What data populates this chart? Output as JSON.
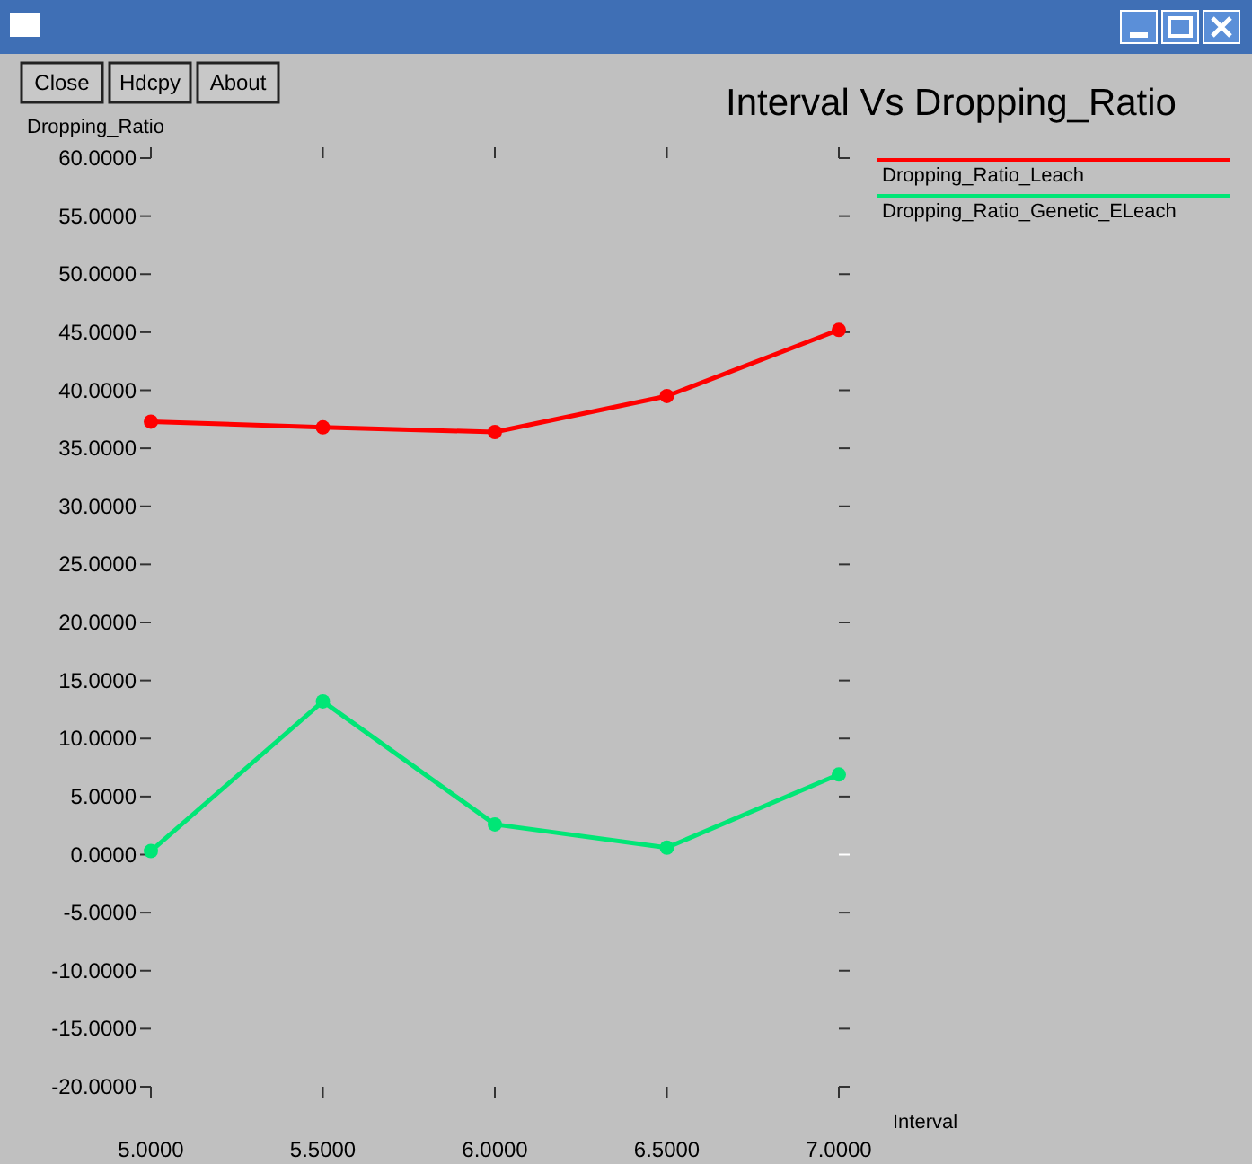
{
  "chart_data": {
    "type": "line",
    "title": "Interval Vs Dropping_Ratio",
    "xlabel": "Interval",
    "ylabel": "Dropping_Ratio",
    "annotations": [
      "Close",
      "Hdcpy",
      "About"
    ],
    "x": [
      5,
      5.5,
      6,
      6.5,
      7
    ],
    "series": [
      {
        "name": "Dropping_Ratio_Leach",
        "color": "#ff0000",
        "values": [
          37.3,
          36.8,
          36.4,
          39.5,
          45.2
        ]
      },
      {
        "name": "Dropping_Ratio_Genetic_ELeach",
        "color": "#00e676",
        "values": [
          0.3,
          13.2,
          2.6,
          0.6,
          6.9
        ]
      }
    ],
    "xlim": [
      5,
      7
    ],
    "ylim": [
      -20,
      60
    ],
    "xticks": [
      {
        "value": 5,
        "label": "5.0000"
      },
      {
        "value": 5.5,
        "label": "5.5000"
      },
      {
        "value": 6,
        "label": "6.0000"
      },
      {
        "value": 6.5,
        "label": "6.5000"
      },
      {
        "value": 7,
        "label": "7.0000"
      }
    ],
    "yticks": [
      {
        "value": -20,
        "label": "-20.0000"
      },
      {
        "value": -15,
        "label": "-15.0000"
      },
      {
        "value": -10,
        "label": "-10.0000"
      },
      {
        "value": -5,
        "label": "-5.0000"
      },
      {
        "value": 0,
        "label": "0.0000"
      },
      {
        "value": 5,
        "label": "5.0000"
      },
      {
        "value": 10,
        "label": "10.0000"
      },
      {
        "value": 15,
        "label": "15.0000"
      },
      {
        "value": 20,
        "label": "20.0000"
      },
      {
        "value": 25,
        "label": "25.0000"
      },
      {
        "value": 30,
        "label": "30.0000"
      },
      {
        "value": 35,
        "label": "35.0000"
      },
      {
        "value": 40,
        "label": "40.0000"
      },
      {
        "value": 45,
        "label": "45.0000"
      },
      {
        "value": 50,
        "label": "50.0000"
      },
      {
        "value": 55,
        "label": "55.0000"
      },
      {
        "value": 60,
        "label": "60.0000"
      }
    ],
    "grid": false,
    "legend": "top right",
    "marker": "circle",
    "line_style": "solid"
  }
}
